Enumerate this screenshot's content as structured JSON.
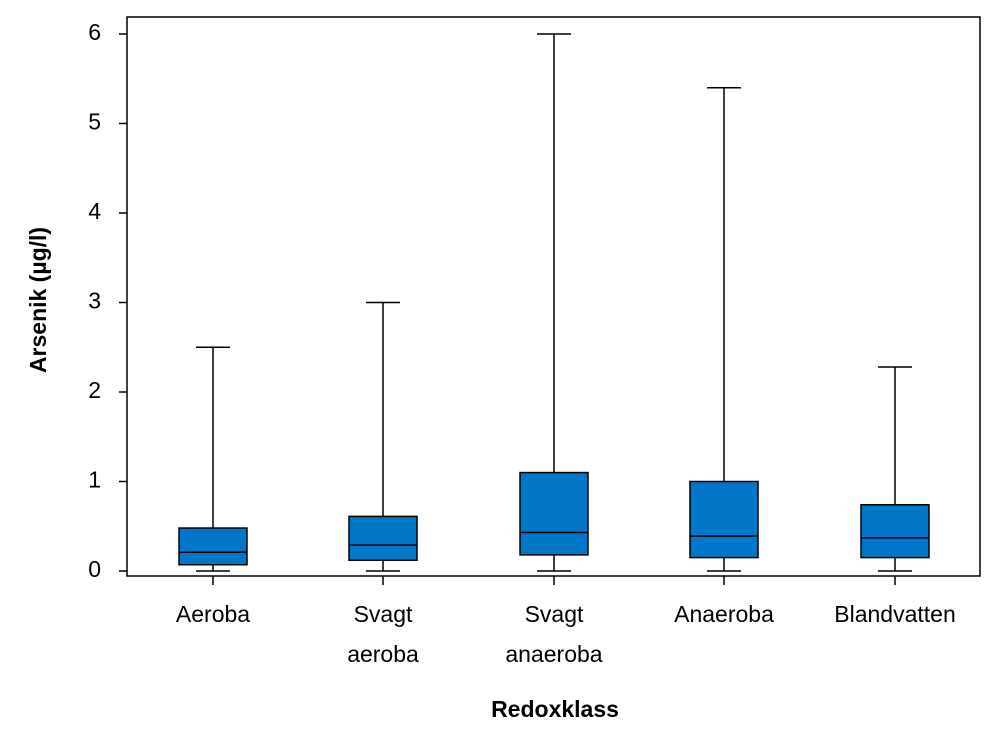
{
  "chart_data": {
    "type": "box",
    "xlabel": "Redoxklass",
    "ylabel": "Arsenik (µg/l)",
    "ylim": [
      0,
      6
    ],
    "yticks": [
      0,
      1,
      2,
      3,
      4,
      5,
      6
    ],
    "grid": false,
    "legend": "none",
    "box_color": "#0077c8",
    "categories": [
      [
        "Aeroba"
      ],
      [
        "Svagt",
        "aeroba"
      ],
      [
        "Svagt",
        "anaeroba"
      ],
      [
        "Anaeroba"
      ],
      [
        "Blandvatten"
      ]
    ],
    "boxes": [
      {
        "min": 0.0,
        "q1": 0.07,
        "median": 0.21,
        "q3": 0.48,
        "max": 2.5
      },
      {
        "min": 0.0,
        "q1": 0.12,
        "median": 0.29,
        "q3": 0.61,
        "max": 3.0
      },
      {
        "min": 0.0,
        "q1": 0.18,
        "median": 0.43,
        "q3": 1.1,
        "max": 6.0
      },
      {
        "min": 0.0,
        "q1": 0.15,
        "median": 0.39,
        "q3": 1.0,
        "max": 5.4
      },
      {
        "min": 0.0,
        "q1": 0.15,
        "median": 0.37,
        "q3": 0.74,
        "max": 2.28
      }
    ]
  }
}
